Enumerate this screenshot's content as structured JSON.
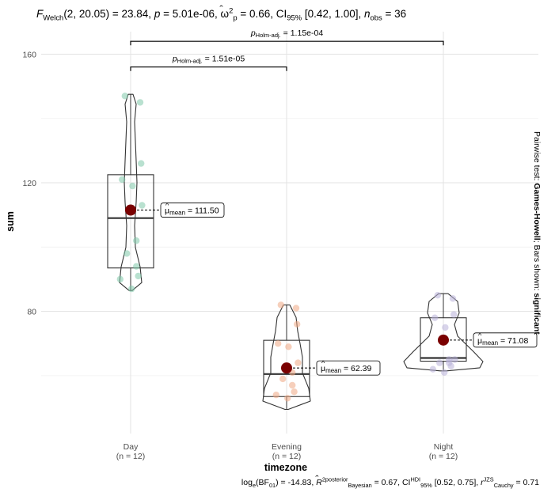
{
  "title": {
    "stat_name": "F",
    "stat_sub": "Welch",
    "dfs": "(2, 20.05)",
    "stat_value": "23.84",
    "p_label": "p",
    "p_value": "5.01e-06",
    "effsize_symbol": "ω",
    "effsize_sup": "2",
    "effsize_sub": "p",
    "effsize_value": "0.66",
    "ci_label": "CI",
    "ci_sub": "95%",
    "ci_value": "[0.42, 1.00]",
    "n_label": "n",
    "n_sub": "obs",
    "n_value": "36"
  },
  "caption": {
    "bf_func": "log",
    "bf_func_sub": "e",
    "bf_label": "(BF",
    "bf_sub": "01",
    "bf_close": ")",
    "bf_value": "-14.83",
    "r2_label": "R",
    "r2_sup": "2",
    "r2_sup2": "posterior",
    "r2_sub": "Bayesian",
    "r2_value": "0.67",
    "ci_label": "CI",
    "ci_sup": "HDI",
    "ci_sub": "95%",
    "ci_value": "[0.52, 0.75]",
    "r_label": "r",
    "r_sup": "JZS",
    "r_sub": "Cauchy",
    "r_value": "0.71"
  },
  "subtitle": {
    "prefix": "Pairwise test: ",
    "test": "Games-Howell",
    "middle": "; Bars shown: ",
    "shown": "significant"
  },
  "chart_data": {
    "type": "violin-box-scatter",
    "xlabel": "timezone",
    "ylabel": "sum",
    "ylim": [
      42,
      167
    ],
    "yticks": [
      80,
      120,
      160
    ],
    "grid": true,
    "categories": [
      "Day",
      "Evening",
      "Night"
    ],
    "category_n": [
      "(n = 12)",
      "(n = 12)",
      "(n = 12)"
    ],
    "colors": [
      "#7fc8a9",
      "#eea883",
      "#b8b1d8"
    ],
    "mean_color": "#7a0000",
    "groups": [
      {
        "name": "Day",
        "points": [
          147,
          145,
          126,
          121,
          119,
          113,
          102,
          98,
          94,
          91,
          90,
          87
        ],
        "box": {
          "q1": 93.5,
          "median": 109,
          "q3": 122.5,
          "min": 86.5,
          "max": 147.5
        },
        "violin_range": [
          86.5,
          147.5
        ],
        "mean": 111.5,
        "mean_label_prefix": "μ",
        "mean_label_sub": "mean",
        "mean_label_value": "111.50"
      },
      {
        "name": "Evening",
        "points": [
          82,
          81,
          76,
          70,
          69,
          64,
          61,
          59,
          57,
          55,
          54,
          53
        ],
        "box": {
          "q1": 53.5,
          "median": 60.5,
          "q3": 71,
          "min": 49.5,
          "max": 82
        },
        "violin_range": [
          49.5,
          82
        ],
        "mean": 62.39,
        "mean_label_prefix": "μ",
        "mean_label_sub": "mean",
        "mean_label_value": "62.39"
      },
      {
        "name": "Night",
        "points": [
          85,
          84,
          79,
          78,
          75,
          65,
          65,
          64,
          64,
          63,
          62,
          61
        ],
        "box": {
          "q1": 64.5,
          "median": 65.5,
          "q3": 78,
          "min": 61.5,
          "max": 85.5
        },
        "violin_range": [
          61.5,
          85.5
        ],
        "mean": 71.08,
        "mean_label_prefix": "μ",
        "mean_label_sub": "mean",
        "mean_label_value": "71.08"
      }
    ],
    "comparisons": [
      {
        "from": "Day",
        "to": "Evening",
        "y": 156,
        "label_p": "p",
        "label_sub": "Holm-adj.",
        "label_value": "1.51e-05"
      },
      {
        "from": "Day",
        "to": "Night",
        "y": 164,
        "label_p": "p",
        "label_sub": "Holm-adj.",
        "label_value": "1.15e-04"
      }
    ]
  }
}
